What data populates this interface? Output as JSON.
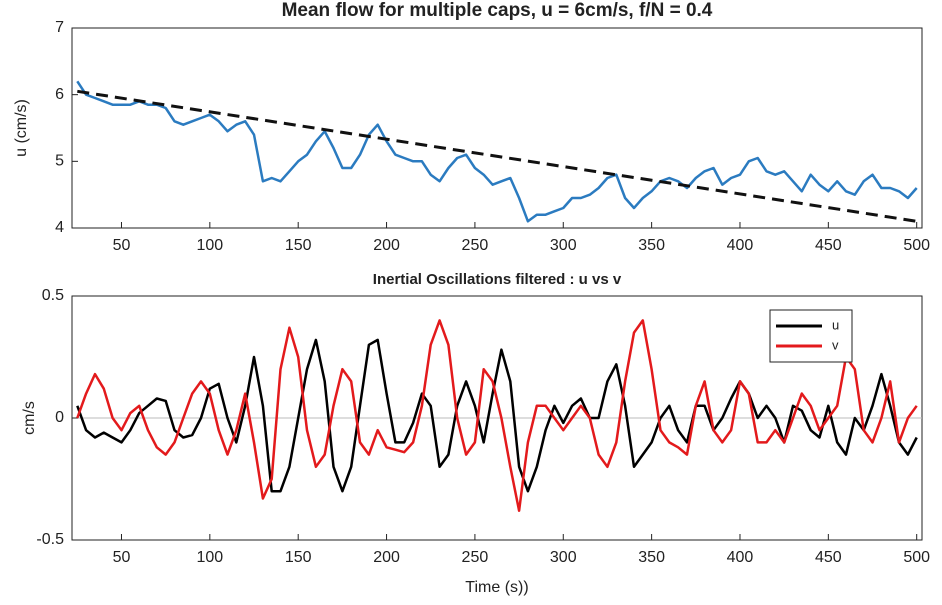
{
  "chart_data": [
    {
      "type": "line",
      "title": "Mean flow for multiple caps, u = 6cm/s, f/N = 0.4",
      "ylabel": "u (cm/s)",
      "x": [
        25,
        30,
        35,
        40,
        45,
        50,
        55,
        60,
        65,
        70,
        75,
        80,
        85,
        90,
        95,
        100,
        105,
        110,
        115,
        120,
        125,
        130,
        135,
        140,
        145,
        150,
        155,
        160,
        165,
        170,
        175,
        180,
        185,
        190,
        195,
        200,
        205,
        210,
        215,
        220,
        225,
        230,
        235,
        240,
        245,
        250,
        255,
        260,
        265,
        270,
        275,
        280,
        285,
        290,
        295,
        300,
        305,
        310,
        315,
        320,
        325,
        330,
        335,
        340,
        345,
        350,
        355,
        360,
        365,
        370,
        375,
        380,
        385,
        390,
        395,
        400,
        405,
        410,
        415,
        420,
        425,
        430,
        435,
        440,
        445,
        450,
        455,
        460,
        465,
        470,
        475,
        480,
        485,
        490,
        495,
        500
      ],
      "series": [
        {
          "color": "#2b7bc0",
          "values": [
            6.2,
            6.0,
            5.95,
            5.9,
            5.85,
            5.85,
            5.85,
            5.9,
            5.85,
            5.85,
            5.8,
            5.6,
            5.55,
            5.6,
            5.65,
            5.7,
            5.6,
            5.45,
            5.55,
            5.6,
            5.4,
            4.7,
            4.75,
            4.7,
            4.85,
            5.0,
            5.1,
            5.3,
            5.45,
            5.2,
            4.9,
            4.9,
            5.1,
            5.4,
            5.55,
            5.3,
            5.1,
            5.05,
            5.0,
            5.0,
            4.8,
            4.7,
            4.9,
            5.05,
            5.1,
            4.9,
            4.8,
            4.65,
            4.7,
            4.75,
            4.45,
            4.1,
            4.2,
            4.2,
            4.25,
            4.3,
            4.45,
            4.45,
            4.5,
            4.6,
            4.75,
            4.8,
            4.45,
            4.3,
            4.45,
            4.55,
            4.7,
            4.75,
            4.7,
            4.6,
            4.75,
            4.85,
            4.9,
            4.65,
            4.75,
            4.8,
            5.0,
            5.05,
            4.85,
            4.8,
            4.85,
            4.7,
            4.55,
            4.8,
            4.65,
            4.55,
            4.7,
            4.55,
            4.5,
            4.7,
            4.8,
            4.6,
            4.6,
            4.55,
            4.45,
            4.6
          ]
        },
        {
          "color": "#111111",
          "dash": true,
          "x": [
            25,
            500
          ],
          "values": [
            6.05,
            4.1
          ]
        }
      ],
      "xlim": [
        22,
        503
      ],
      "ylim": [
        4,
        7
      ],
      "xticks": [
        50,
        100,
        150,
        200,
        250,
        300,
        350,
        400,
        450,
        500
      ],
      "yticks": [
        4,
        5,
        6,
        7
      ],
      "grid": false
    },
    {
      "type": "line",
      "title": "Inertial Oscillations filtered : u vs v",
      "ylabel": "cm/s",
      "xlabel": "Time (s))",
      "x": [
        25,
        30,
        35,
        40,
        45,
        50,
        55,
        60,
        65,
        70,
        75,
        80,
        85,
        90,
        95,
        100,
        105,
        110,
        115,
        120,
        125,
        130,
        135,
        140,
        145,
        150,
        155,
        160,
        165,
        170,
        175,
        180,
        185,
        190,
        195,
        200,
        205,
        210,
        215,
        220,
        225,
        230,
        235,
        240,
        245,
        250,
        255,
        260,
        265,
        270,
        275,
        280,
        285,
        290,
        295,
        300,
        305,
        310,
        315,
        320,
        325,
        330,
        335,
        340,
        345,
        350,
        355,
        360,
        365,
        370,
        375,
        380,
        385,
        390,
        395,
        400,
        405,
        410,
        415,
        420,
        425,
        430,
        435,
        440,
        445,
        450,
        455,
        460,
        465,
        470,
        475,
        480,
        485,
        490,
        495,
        500
      ],
      "series": [
        {
          "name": "u",
          "color": "#000000",
          "values": [
            0.05,
            -0.05,
            -0.08,
            -0.06,
            -0.08,
            -0.1,
            -0.05,
            0.02,
            0.05,
            0.08,
            0.07,
            -0.05,
            -0.08,
            -0.07,
            0.0,
            0.12,
            0.14,
            0.0,
            -0.1,
            0.05,
            0.25,
            0.05,
            -0.3,
            -0.3,
            -0.2,
            0.0,
            0.2,
            0.32,
            0.15,
            -0.2,
            -0.3,
            -0.2,
            0.05,
            0.3,
            0.32,
            0.1,
            -0.1,
            -0.1,
            -0.02,
            0.1,
            0.05,
            -0.2,
            -0.15,
            0.05,
            0.15,
            0.05,
            -0.1,
            0.1,
            0.28,
            0.15,
            -0.2,
            -0.3,
            -0.2,
            -0.05,
            0.05,
            -0.02,
            0.05,
            0.08,
            0.0,
            0.0,
            0.15,
            0.22,
            0.05,
            -0.2,
            -0.15,
            -0.1,
            0.0,
            0.05,
            -0.05,
            -0.1,
            0.05,
            0.05,
            -0.05,
            0.0,
            0.08,
            0.15,
            0.1,
            0.0,
            0.05,
            0.0,
            -0.1,
            0.05,
            0.03,
            -0.05,
            -0.08,
            0.05,
            -0.1,
            -0.15,
            0.0,
            -0.05,
            0.05,
            0.18,
            0.05,
            -0.1,
            -0.15,
            -0.08
          ]
        },
        {
          "name": "v",
          "color": "#e31a1c",
          "values": [
            0.0,
            0.1,
            0.18,
            0.12,
            0.0,
            -0.05,
            0.02,
            0.05,
            -0.05,
            -0.12,
            -0.15,
            -0.1,
            0.0,
            0.1,
            0.15,
            0.1,
            -0.05,
            -0.15,
            -0.05,
            0.1,
            -0.1,
            -0.33,
            -0.25,
            0.2,
            0.37,
            0.25,
            -0.05,
            -0.2,
            -0.15,
            0.05,
            0.2,
            0.15,
            -0.1,
            -0.15,
            -0.05,
            -0.12,
            -0.13,
            -0.14,
            -0.1,
            0.05,
            0.3,
            0.4,
            0.3,
            0.0,
            -0.15,
            -0.1,
            0.2,
            0.15,
            0.0,
            -0.2,
            -0.38,
            -0.1,
            0.05,
            0.05,
            0.0,
            -0.05,
            0.0,
            0.05,
            0.0,
            -0.15,
            -0.2,
            -0.1,
            0.15,
            0.35,
            0.4,
            0.2,
            -0.05,
            -0.1,
            -0.12,
            -0.15,
            0.05,
            0.15,
            -0.05,
            -0.1,
            -0.05,
            0.15,
            0.1,
            -0.1,
            -0.1,
            -0.05,
            -0.1,
            0.0,
            0.1,
            0.05,
            -0.05,
            0.0,
            0.05,
            0.25,
            0.2,
            -0.05,
            -0.1,
            0.0,
            0.15,
            -0.1,
            0.0,
            0.05
          ]
        }
      ],
      "xlim": [
        22,
        503
      ],
      "ylim": [
        -0.5,
        0.5
      ],
      "xticks": [
        50,
        100,
        150,
        200,
        250,
        300,
        350,
        400,
        450,
        500
      ],
      "yticks": [
        -0.5,
        0,
        0.5
      ],
      "zero_line": true,
      "legend": "upper right"
    }
  ]
}
